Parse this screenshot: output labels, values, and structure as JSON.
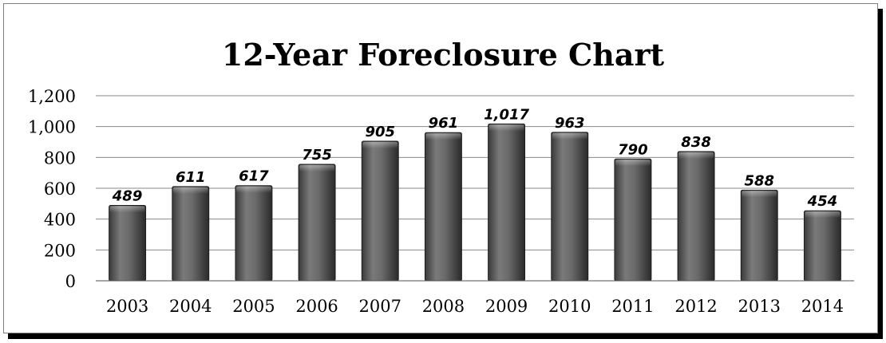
{
  "chart_data": {
    "type": "bar",
    "title": "12-Year Foreclosure Chart",
    "xlabel": "",
    "ylabel": "",
    "categories": [
      "2003",
      "2004",
      "2005",
      "2006",
      "2007",
      "2008",
      "2009",
      "2010",
      "2011",
      "2012",
      "2013",
      "2014"
    ],
    "values": [
      489,
      611,
      617,
      755,
      905,
      961,
      1017,
      963,
      790,
      838,
      588,
      454
    ],
    "data_labels": [
      "489",
      "611",
      "617",
      "755",
      "905",
      "961",
      "1,017",
      "963",
      "790",
      "838",
      "588",
      "454"
    ],
    "ylim": [
      0,
      1200
    ],
    "y_ticks": [
      0,
      200,
      400,
      600,
      800,
      1000,
      1200
    ],
    "y_tick_labels": [
      "0",
      "200",
      "400",
      "600",
      "800",
      "1,000",
      "1,200"
    ],
    "grid": true,
    "legend": "none",
    "colors": {
      "bar_dark": "#2e2e2e",
      "bar_light": "#8c8c8c",
      "grid": "#8a8a8a",
      "text": "#000000"
    }
  }
}
